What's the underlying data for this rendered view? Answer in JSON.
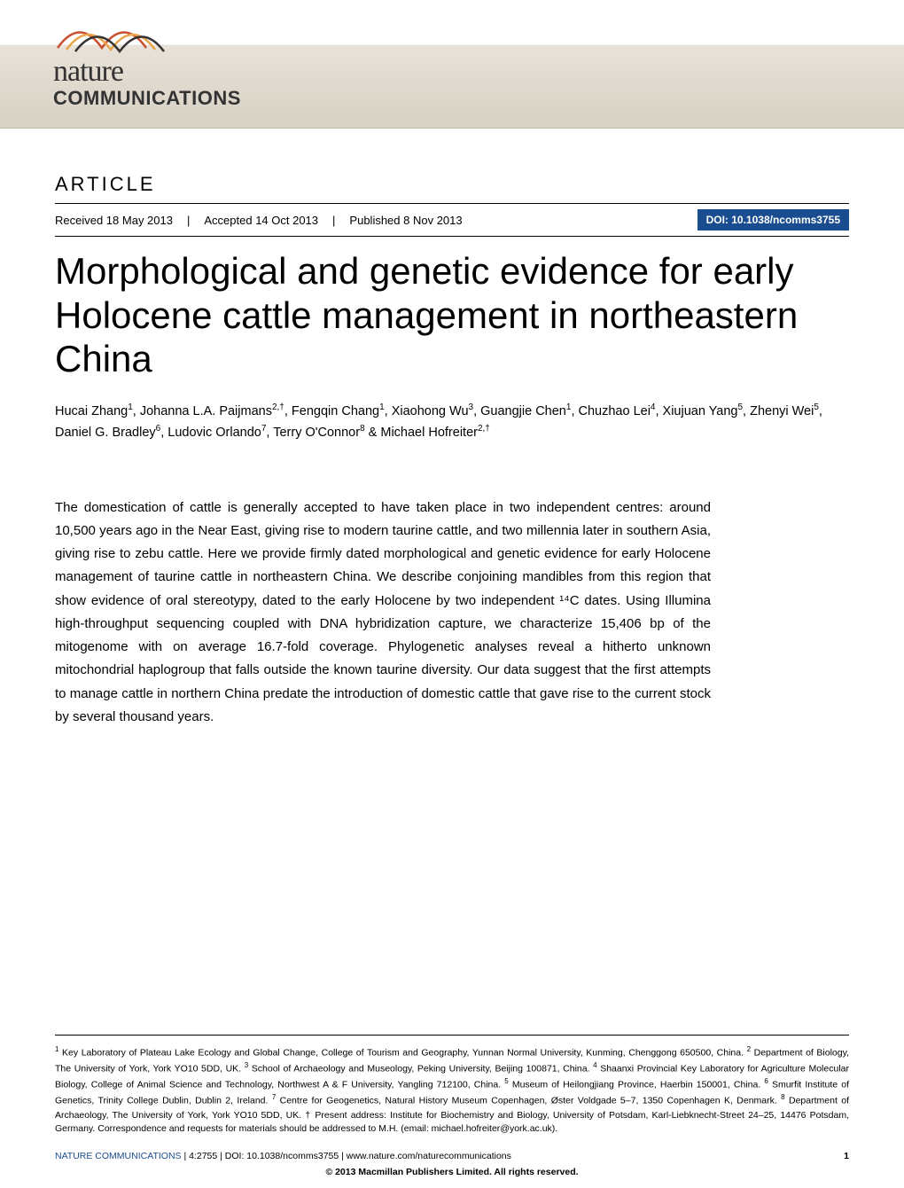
{
  "banner": {
    "bg_gradient_top": "#ffffff",
    "bg_gradient_bottom": "#d8d0c4",
    "logo_nature": "nature",
    "logo_comms": "COMMUNICATIONS",
    "wave_colors": [
      "#c94f2e",
      "#e8a54a",
      "#333333"
    ]
  },
  "header": {
    "article_label": "ARTICLE",
    "received": "Received 18 May 2013",
    "accepted": "Accepted 14 Oct 2013",
    "published": "Published 8 Nov 2013",
    "doi_label": "DOI: 10.1038/ncomms3755",
    "doi_bg": "#1a4d8f",
    "doi_fg": "#ffffff"
  },
  "title": "Morphological and genetic evidence for early Holocene cattle management in northeastern China",
  "authors_html": "Hucai Zhang<sup>1</sup>, Johanna L.A. Paijmans<sup>2,†</sup>, Fengqin Chang<sup>1</sup>, Xiaohong Wu<sup>3</sup>, Guangjie Chen<sup>1</sup>, Chuzhao Lei<sup>4</sup>, Xiujuan Yang<sup>5</sup>, Zhenyi Wei<sup>5</sup>, Daniel G. Bradley<sup>6</sup>, Ludovic Orlando<sup>7</sup>, Terry O'Connor<sup>8</sup> & Michael Hofreiter<sup>2,†</sup>",
  "abstract": "The domestication of cattle is generally accepted to have taken place in two independent centres: around 10,500 years ago in the Near East, giving rise to modern taurine cattle, and two millennia later in southern Asia, giving rise to zebu cattle. Here we provide firmly dated morphological and genetic evidence for early Holocene management of taurine cattle in northeastern China. We describe conjoining mandibles from this region that show evidence of oral stereotypy, dated to the early Holocene by two independent ¹⁴C dates. Using Illumina high-throughput sequencing coupled with DNA hybridization capture, we characterize 15,406 bp of the mitogenome with on average 16.7-fold coverage. Phylogenetic analyses reveal a hitherto unknown mitochondrial haplogroup that falls outside the known taurine diversity. Our data suggest that the first attempts to manage cattle in northern China predate the introduction of domestic cattle that gave rise to the current stock by several thousand years.",
  "affiliations_html": "<sup>1</sup> Key Laboratory of Plateau Lake Ecology and Global Change, College of Tourism and Geography, Yunnan Normal University, Kunming, Chenggong 650500, China. <sup>2</sup> Department of Biology, The University of York, York YO10 5DD, UK. <sup>3</sup> School of Archaeology and Museology, Peking University, Beijing 100871, China. <sup>4</sup> Shaanxi Provincial Key Laboratory for Agriculture Molecular Biology, College of Animal Science and Technology, Northwest A & F University, Yangling 712100, China. <sup>5</sup> Museum of Heilongjiang Province, Haerbin 150001, China. <sup>6</sup> Smurfit Institute of Genetics, Trinity College Dublin, Dublin 2, Ireland. <sup>7</sup> Centre for Geogenetics, Natural History Museum Copenhagen, Øster Voldgade 5–7, 1350 Copenhagen K, Denmark. <sup>8</sup> Department of Archaeology, The University of York, York YO10 5DD, UK. † Present address: Institute for Biochemistry and Biology, University of Potsdam, Karl-Liebknecht-Street 24–25, 14476 Potsdam, Germany. Correspondence and requests for materials should be addressed to M.H. (email: michael.hofreiter@york.ac.uk).",
  "footer": {
    "journal": "NATURE COMMUNICATIONS",
    "citation": " | 4:2755 | DOI: 10.1038/ncomms3755 | www.nature.com/naturecommunications",
    "page": "1",
    "copyright": "© 2013 Macmillan Publishers Limited. All rights reserved."
  },
  "typography": {
    "title_fontsize": 42,
    "title_weight": 300,
    "body_fontsize": 15,
    "authors_fontsize": 14.5,
    "affil_fontsize": 10.5,
    "footer_fontsize": 10.5
  },
  "colors": {
    "text": "#000000",
    "link_blue": "#1a4d8f",
    "background": "#ffffff"
  }
}
